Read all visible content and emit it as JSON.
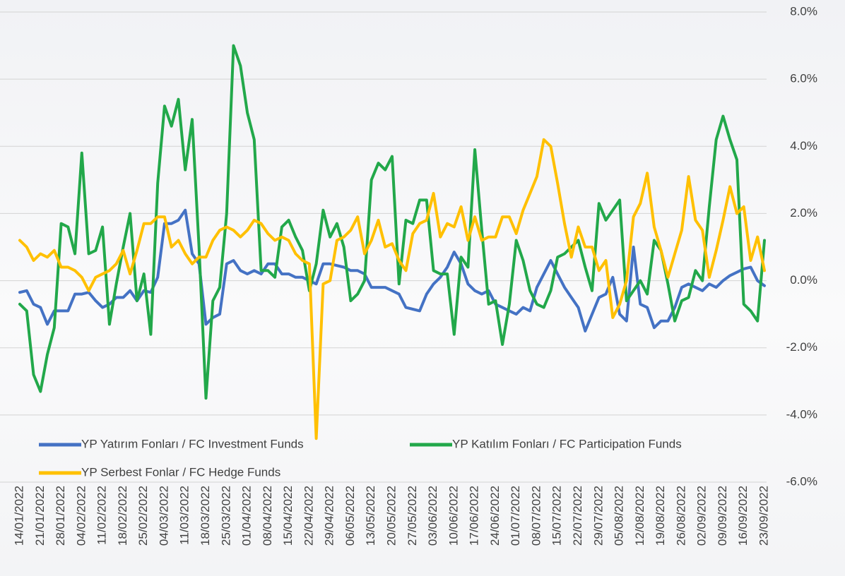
{
  "chart_data": {
    "type": "line",
    "categories": [
      "14/01/2022",
      null,
      null,
      "21/01/2022",
      null,
      null,
      "28/01/2022",
      null,
      null,
      "04/02/2022",
      null,
      null,
      "11/02/2022",
      null,
      null,
      "18/02/2022",
      null,
      null,
      "25/02/2022",
      null,
      null,
      "04/03/2022",
      null,
      null,
      "11/03/2022",
      null,
      null,
      "18/03/2022",
      null,
      null,
      "25/03/2022",
      null,
      null,
      "01/04/2022",
      null,
      null,
      "08/04/2022",
      null,
      null,
      "15/04/2022",
      null,
      null,
      "22/04/2022",
      null,
      null,
      "29/04/2022",
      null,
      null,
      "06/05/2022",
      null,
      null,
      "13/05/2022",
      null,
      null,
      "20/05/2022",
      null,
      null,
      "27/05/2022",
      null,
      null,
      "03/06/2022",
      null,
      null,
      "10/06/2022",
      null,
      null,
      "17/06/2022",
      null,
      null,
      "24/06/2022",
      null,
      null,
      "01/07/2022",
      null,
      null,
      "08/07/2022",
      null,
      null,
      "15/07/2022",
      null,
      null,
      "22/07/2022",
      null,
      null,
      "29/07/2022",
      null,
      null,
      "05/08/2022",
      null,
      null,
      "12/08/2022",
      null,
      null,
      "19/08/2022",
      null,
      null,
      "26/08/2022",
      null,
      null,
      "02/09/2022",
      null,
      null,
      "09/09/2022",
      null,
      null,
      "16/09/2022",
      null,
      null,
      "23/09/2022"
    ],
    "series": [
      {
        "name": "YP Yatırım Fonları / FC Investment Funds",
        "color": "#4472c4",
        "values": [
          -0.35,
          -0.3,
          -0.7,
          -0.8,
          -1.3,
          -0.9,
          -0.9,
          -0.9,
          -0.4,
          -0.4,
          -0.35,
          -0.6,
          -0.8,
          -0.7,
          -0.5,
          -0.5,
          -0.3,
          -0.6,
          -0.3,
          -0.35,
          0.1,
          1.7,
          1.7,
          1.8,
          2.1,
          0.8,
          0.5,
          -1.3,
          -1.1,
          -1.0,
          0.5,
          0.6,
          0.3,
          0.2,
          0.3,
          0.2,
          0.5,
          0.5,
          0.2,
          0.2,
          0.1,
          0.1,
          0.0,
          -0.1,
          0.5,
          0.5,
          0.45,
          0.4,
          0.3,
          0.3,
          0.2,
          -0.2,
          -0.2,
          -0.2,
          -0.3,
          -0.4,
          -0.8,
          -0.85,
          -0.9,
          -0.4,
          -0.1,
          0.1,
          0.4,
          0.85,
          0.5,
          -0.1,
          -0.3,
          -0.4,
          -0.3,
          -0.7,
          -0.8,
          -0.9,
          -1.0,
          -0.8,
          -0.9,
          -0.2,
          0.2,
          0.6,
          0.2,
          -0.2,
          -0.5,
          -0.8,
          -1.5,
          -1.0,
          -0.5,
          -0.4,
          0.1,
          -1.0,
          -1.2,
          1.0,
          -0.7,
          -0.8,
          -1.4,
          -1.2,
          -1.2,
          -0.8,
          -0.2,
          -0.1,
          -0.2,
          -0.3,
          -0.1,
          -0.2,
          0.0,
          0.15,
          0.25,
          0.35,
          0.4,
          0.0,
          -0.15
        ]
      },
      {
        "name": "YP Katılım Fonları / FC Participation Funds",
        "color": "#22a84a",
        "values": [
          -0.7,
          -0.9,
          -2.8,
          -3.3,
          -2.2,
          -1.4,
          1.7,
          1.6,
          0.8,
          3.8,
          0.8,
          0.9,
          1.6,
          -1.3,
          -0.1,
          1.0,
          2.0,
          -0.6,
          0.2,
          -1.6,
          2.9,
          5.2,
          4.6,
          5.4,
          3.3,
          4.8,
          1.0,
          -3.5,
          -0.6,
          -0.2,
          2.0,
          7.0,
          6.4,
          5.0,
          4.2,
          0.3,
          0.3,
          0.1,
          1.6,
          1.8,
          1.3,
          0.9,
          -0.3,
          0.5,
          2.1,
          1.3,
          1.7,
          1.0,
          -0.6,
          -0.4,
          0.0,
          3.0,
          3.5,
          3.3,
          3.7,
          -0.1,
          1.8,
          1.7,
          2.4,
          2.4,
          0.3,
          0.2,
          0.2,
          -1.6,
          0.7,
          0.4,
          3.9,
          1.5,
          -0.7,
          -0.6,
          -1.9,
          -0.7,
          1.2,
          0.6,
          -0.3,
          -0.7,
          -0.8,
          -0.3,
          0.7,
          0.8,
          1.0,
          1.2,
          0.4,
          -0.3,
          2.3,
          1.8,
          2.1,
          2.4,
          -0.6,
          -0.3,
          0.0,
          -0.4,
          1.2,
          0.9,
          -0.1,
          -1.2,
          -0.6,
          -0.5,
          0.3,
          0.0,
          2.2,
          4.2,
          4.9,
          4.2,
          3.6,
          -0.7,
          -0.9,
          -1.2,
          1.2
        ]
      },
      {
        "name": "YP Serbest Fonlar / FC Hedge Funds",
        "color": "#ffc000",
        "values": [
          1.2,
          1.0,
          0.6,
          0.8,
          0.7,
          0.9,
          0.4,
          0.4,
          0.3,
          0.1,
          -0.3,
          0.1,
          0.2,
          0.3,
          0.5,
          0.9,
          0.2,
          0.9,
          1.7,
          1.7,
          1.9,
          1.9,
          1.0,
          1.2,
          0.8,
          0.5,
          0.7,
          0.7,
          1.2,
          1.5,
          1.6,
          1.5,
          1.3,
          1.5,
          1.8,
          1.7,
          1.4,
          1.2,
          1.3,
          1.2,
          0.8,
          0.6,
          0.5,
          -4.7,
          -0.1,
          0.0,
          1.2,
          1.3,
          1.5,
          1.9,
          0.8,
          1.2,
          1.8,
          1.0,
          1.1,
          0.6,
          0.3,
          1.4,
          1.7,
          1.8,
          2.6,
          1.3,
          1.7,
          1.6,
          2.2,
          1.2,
          1.9,
          1.2,
          1.3,
          1.3,
          1.9,
          1.9,
          1.4,
          2.1,
          2.6,
          3.1,
          4.2,
          4.0,
          2.9,
          1.7,
          0.7,
          1.6,
          1.0,
          1.0,
          0.3,
          0.6,
          -1.1,
          -0.7,
          0.0,
          1.9,
          2.3,
          3.2,
          1.6,
          0.9,
          0.1,
          0.8,
          1.5,
          3.1,
          1.8,
          1.5,
          0.1,
          0.9,
          1.8,
          2.8,
          2.0,
          2.2,
          0.6,
          1.3,
          0.3
        ]
      }
    ],
    "ylim": [
      -6,
      8
    ],
    "yticks": [
      {
        "value": -6,
        "label": "-6.0%"
      },
      {
        "value": -4,
        "label": "-4.0%"
      },
      {
        "value": -2,
        "label": "-2.0%"
      },
      {
        "value": 0,
        "label": "0.0%"
      },
      {
        "value": 2,
        "label": "2.0%"
      },
      {
        "value": 4,
        "label": "4.0%"
      },
      {
        "value": 6,
        "label": "6.0%"
      },
      {
        "value": 8,
        "label": "8.0%"
      }
    ],
    "grid": true,
    "legend": "lower left"
  }
}
